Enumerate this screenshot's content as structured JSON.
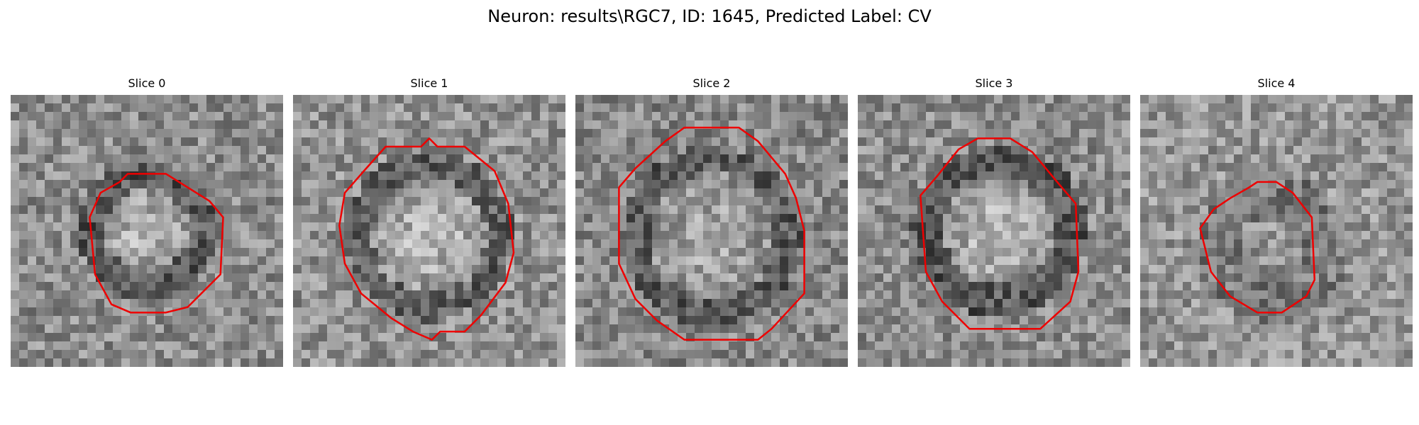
{
  "title": "Neuron: results\\RGC7, ID: 1645, Predicted Label: CV",
  "colors": {
    "contour": "#ee0000",
    "background": "#ffffff"
  },
  "slices": [
    {
      "label": "Slice 0"
    },
    {
      "label": "Slice 1"
    },
    {
      "label": "Slice 2"
    },
    {
      "label": "Slice 3"
    },
    {
      "label": "Slice 4"
    }
  ]
}
